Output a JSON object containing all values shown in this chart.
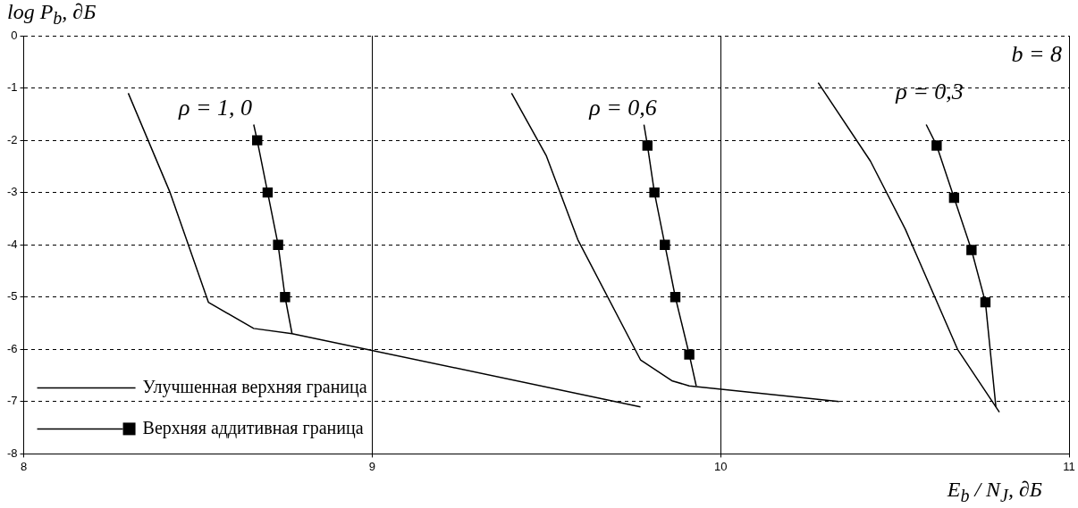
{
  "chart_data": {
    "type": "line",
    "xlabel": "E$_{b}$ / N$_{J}$, ∂Б",
    "ylabel": "log P$_{b}$, ∂Б",
    "xlim": [
      8,
      11
    ],
    "ylim": [
      -8,
      0
    ],
    "xticks": [
      8,
      9,
      10,
      11
    ],
    "yticks": [
      -8,
      -7,
      -6,
      -5,
      -4,
      -3,
      -2,
      -1,
      0
    ],
    "grid": true,
    "legend": "bottom left",
    "line_style": "solid",
    "series": [
      {
        "name": "Улучшенная верхняя граница",
        "color": "#000000",
        "marker": "none",
        "x": [
          8.3,
          8.42,
          8.53,
          8.66,
          8.77,
          9.77
        ],
        "values": [
          -1.1,
          -3.0,
          -5.1,
          -5.6,
          -5.7,
          -7.1
        ]
      },
      {
        "name": "Верхняя аддитивная граница",
        "color": "#000000",
        "marker": "square",
        "x": [
          8.67,
          8.7,
          8.73,
          8.75
        ],
        "values": [
          -2.0,
          -3.0,
          -4.0,
          -5.0
        ]
      },
      {
        "color": "#000000",
        "marker": "none",
        "x": [
          8.66,
          8.67,
          8.7,
          8.75,
          8.77
        ],
        "values": [
          -1.7,
          -2.0,
          null,
          -5.0,
          -5.7
        ]
      },
      {
        "color": "#000000",
        "marker": "none",
        "x": [
          9.4,
          9.5,
          9.59,
          9.77,
          9.86,
          9.91,
          10.34
        ],
        "values": [
          -1.1,
          -2.3,
          -3.9,
          -6.2,
          -6.6,
          -6.7,
          -7.0
        ]
      },
      {
        "color": "#000000",
        "marker": "square",
        "x": [
          9.79,
          9.81,
          9.84,
          9.87,
          9.91
        ],
        "values": [
          -2.1,
          -3.0,
          -4.0,
          -5.0,
          -6.1
        ]
      },
      {
        "color": "#000000",
        "marker": "none",
        "x": [
          9.78,
          9.79,
          9.85,
          9.91,
          9.93
        ],
        "values": [
          -1.7,
          -2.1,
          null,
          -6.1,
          -6.7
        ]
      },
      {
        "color": "#000000",
        "marker": "none",
        "x": [
          10.28,
          10.43,
          10.53,
          10.68,
          10.8
        ],
        "values": [
          -0.9,
          -2.4,
          -3.7,
          -6.0,
          -7.2
        ]
      },
      {
        "color": "#000000",
        "marker": "square",
        "x": [
          10.62,
          10.67,
          10.72,
          10.76
        ],
        "values": [
          -2.1,
          -3.1,
          -4.1,
          -5.1
        ]
      },
      {
        "color": "#000000",
        "marker": "none",
        "x": [
          10.59,
          10.62,
          10.7,
          10.76,
          10.79
        ],
        "values": [
          -1.7,
          -2.1,
          null,
          -5.1,
          -7.1
        ]
      }
    ],
    "annotations": [
      "ρ = 1, 0",
      "ρ = 0,6",
      "ρ = 0,3",
      "b = 8"
    ]
  }
}
